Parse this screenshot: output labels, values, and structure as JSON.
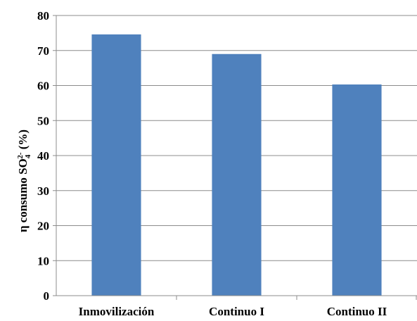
{
  "chart_data": {
    "type": "bar",
    "categories": [
      "Inmovilización",
      "Continuo I",
      "Continuo II"
    ],
    "values": [
      74.6,
      69.0,
      60.3
    ],
    "ylabel": {
      "prefix": "η",
      "main": "consumo SO",
      "subscript": "4",
      "superscript": "2-",
      "suffix": " (%)"
    },
    "ylim": [
      0,
      80
    ],
    "yticks": [
      0,
      10,
      20,
      30,
      40,
      50,
      60,
      70,
      80
    ],
    "grid": true,
    "bar_color": "#4f81bd"
  }
}
